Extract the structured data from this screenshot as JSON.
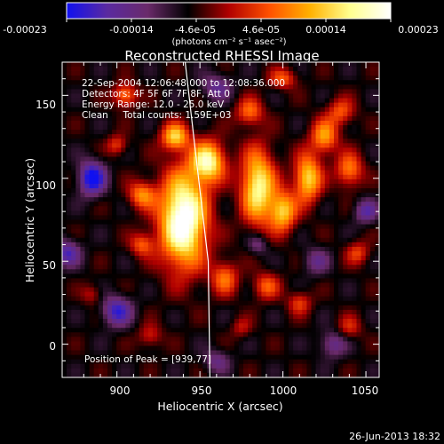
{
  "colorbar": {
    "tick_labels": [
      "-0.00023",
      "-0.00014",
      "-4.6e-05",
      "4.6e-05",
      "0.00014",
      "0.00023"
    ],
    "unit_label": "(photons cm⁻² s⁻¹ asec⁻²)",
    "colormap": [
      "#1010f0",
      "#5a2aa0",
      "#6a2a6a",
      "#000000",
      "#b00000",
      "#ff5000",
      "#ffb000",
      "#ffff90",
      "#ffffff"
    ]
  },
  "chart_data": {
    "type": "heatmap",
    "title": "Reconstructed RHESSI Image",
    "xlabel": "Heliocentric X (arcsec)",
    "ylabel": "Heliocentric Y (arcsec)",
    "xlim": [
      867,
      1058
    ],
    "ylim": [
      -20,
      170
    ],
    "xticks": [
      900,
      950,
      1000,
      1050
    ],
    "yticks": [
      0,
      50,
      100,
      150
    ],
    "limb_line": [
      [
        940,
        180
      ],
      [
        948,
        110
      ],
      [
        955,
        50
      ],
      [
        956,
        -20
      ]
    ],
    "annotations": [
      "22-Sep-2004 12:06:48.000 to 12:08:36.000",
      "Detectors: 4F 5F 6F 7F 8F, Att 0",
      "Energy Range: 12.0 - 25.0 keV",
      "Clean     Total counts: 1.59E+03"
    ],
    "peak_label": "Position of Peak = [939,77]",
    "peak": [
      939,
      77
    ]
  },
  "footer": {
    "date": "26-Jun-2013 18:32"
  }
}
